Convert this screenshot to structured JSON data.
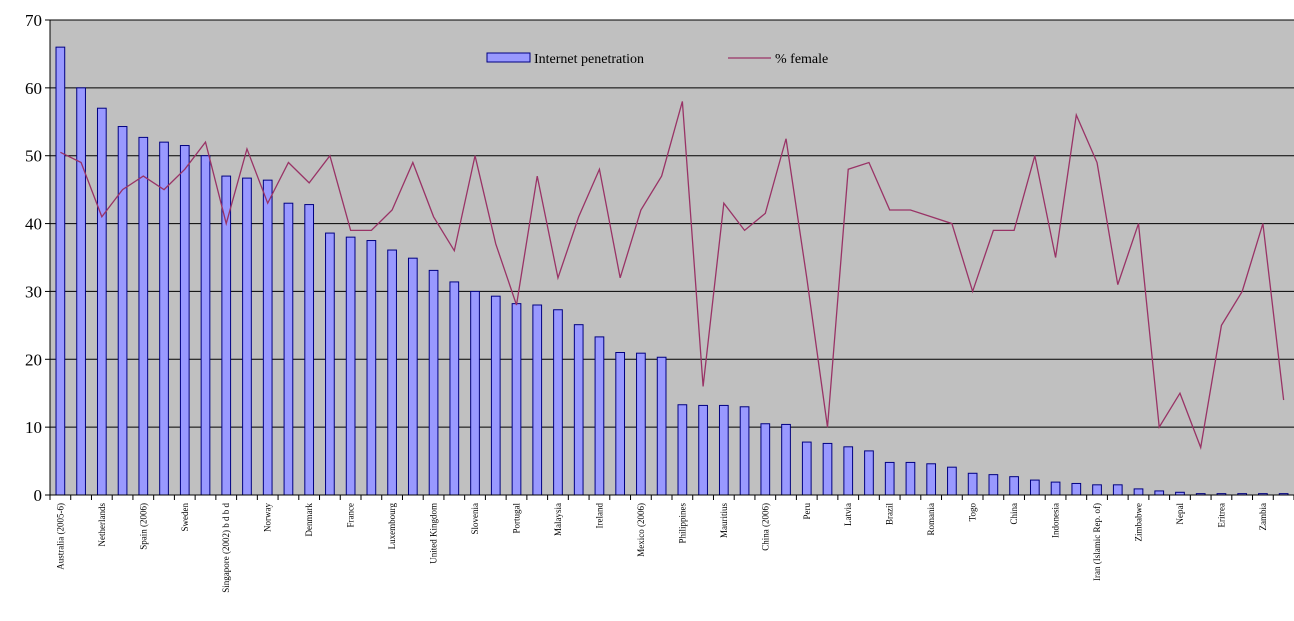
{
  "chart_data": {
    "type": "bar",
    "ylim": [
      0,
      70
    ],
    "yticks": [
      0,
      10,
      20,
      30,
      40,
      50,
      60,
      70
    ],
    "grid": true,
    "legend_position": "top-center",
    "colors": {
      "plot_bg": "#c0c0c0",
      "bar_fill": "#9999ff",
      "bar_stroke": "#000080",
      "line": "#993366",
      "grid": "#000000"
    },
    "categories": [
      "Australia (2005-6)",
      "",
      "Netherlands",
      "",
      "Spain (2006)",
      "",
      "Sweden",
      "",
      "Singapore (2002) b d b d",
      "",
      "Norway",
      "",
      "Denmark",
      "",
      "France",
      "",
      "Luxembourg",
      "",
      "United Kingdom",
      "",
      "Slovenia",
      "",
      "Portugal",
      "",
      "Malaysia",
      "",
      "Ireland",
      "",
      "Mexico (2006)",
      "",
      "Philippines",
      "",
      "Mauritius",
      "",
      "China (2006)",
      "",
      "Peru",
      "",
      "Latvia",
      "",
      "Brazil",
      "",
      "Romania",
      "",
      "Togo",
      "",
      "China",
      "",
      "Indonesia",
      "",
      "Iran (Islamic Rep. of)",
      "",
      "Zimbabwe",
      "",
      "Nepal",
      "",
      "Eritrea",
      "",
      "Zambia",
      ""
    ],
    "series": [
      {
        "name": "Internet penetration",
        "kind": "bar",
        "values": [
          66,
          60,
          57,
          54.3,
          52.7,
          52,
          51.5,
          50,
          47,
          46.7,
          46.4,
          43,
          42.8,
          38.6,
          38,
          37.5,
          36.1,
          34.9,
          33.1,
          31.4,
          30,
          29.3,
          28.2,
          28,
          27.3,
          25.1,
          23.3,
          21,
          20.9,
          20.3,
          13.3,
          13.2,
          13.2,
          13,
          10.5,
          10.4,
          7.8,
          7.6,
          7.1,
          6.5,
          4.8,
          4.8,
          4.6,
          4.1,
          3.2,
          3,
          2.7,
          2.2,
          1.9,
          1.7,
          1.5,
          1.5,
          0.9,
          0.6,
          0.4,
          0.2,
          0.2,
          0.2,
          0.2,
          0.2
        ]
      },
      {
        "name": "% female",
        "kind": "line",
        "values": [
          50.5,
          49,
          41,
          45,
          47,
          45,
          48,
          52,
          40,
          51,
          43,
          49,
          46,
          50,
          39,
          39,
          42,
          49,
          41,
          36,
          50,
          37,
          28,
          47,
          32,
          41,
          48,
          32,
          42,
          47,
          58,
          16,
          43,
          39,
          41.5,
          52.5,
          32,
          10,
          48,
          49,
          42,
          42,
          41,
          40,
          30,
          39,
          39,
          50,
          35,
          56,
          49,
          31,
          40,
          10,
          15,
          7,
          25,
          30,
          40,
          14
        ]
      }
    ]
  }
}
